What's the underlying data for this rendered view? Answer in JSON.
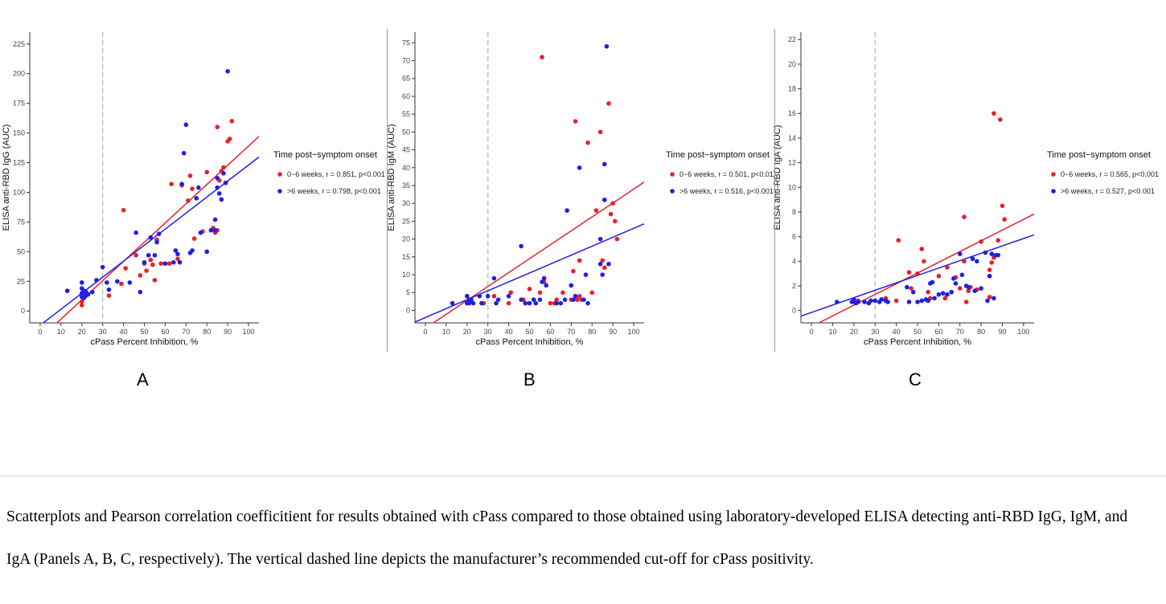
{
  "caption": "Scatterplots and Pearson correlation coefficitient for results obtained with cPass compared to those obtained using laboratory-developed ELISA detecting anti-RBD IgG, IgM, and IgA (Panels A, B, C, respectively).  The vertical dashed line depicts the manufacturer’s recommended cut-off for cPass positivity.",
  "colors": {
    "early": "#e8202a",
    "late": "#1f1fe6",
    "cutoff": "#bbbbbb",
    "axis": "#333333"
  },
  "chart_data": [
    {
      "type": "scatter",
      "panel_label": "A",
      "xlabel": "cPass Percent Inhibition, %",
      "ylabel": "ELISA anti-RBD IgG (AUC)",
      "xlim": [
        -5,
        105
      ],
      "ylim": [
        -10,
        235
      ],
      "xticks": [
        0,
        10,
        20,
        30,
        40,
        50,
        60,
        70,
        80,
        90,
        100
      ],
      "yticks": [
        0,
        25,
        50,
        75,
        100,
        125,
        150,
        175,
        200,
        225
      ],
      "cutoff_x": 30,
      "legend_title": "Time post−symptom onset",
      "series": [
        {
          "name": "0−6 weeks, r = 0.851, p<0.001",
          "color": "#e8202a",
          "fit": {
            "slope": 1.62,
            "intercept": -23
          },
          "x": [
            20,
            20,
            20,
            21,
            22,
            33,
            39,
            40,
            41,
            46,
            48,
            50,
            51,
            53,
            54,
            55,
            56,
            58,
            62,
            63,
            66,
            68,
            71,
            72,
            73,
            74,
            78,
            80,
            83,
            84,
            85,
            85,
            86,
            87,
            88,
            89,
            90,
            91,
            92
          ],
          "y": [
            5,
            8,
            12,
            15,
            14,
            13,
            23,
            85,
            36,
            47,
            30,
            40,
            34,
            43,
            39,
            26,
            60,
            40,
            40,
            107,
            44,
            106,
            93,
            114,
            103,
            61,
            67,
            117,
            70,
            66,
            155,
            68,
            110,
            118,
            121,
            108,
            143,
            145,
            160
          ]
        },
        {
          "name": ">6 weeks, r = 0.798, p<0.001",
          "color": "#1f1fe6",
          "fit": {
            "slope": 1.35,
            "intercept": -12
          },
          "x": [
            13,
            20,
            20,
            20,
            20,
            21,
            21,
            22,
            22,
            23,
            25,
            27,
            30,
            32,
            33,
            37,
            43,
            46,
            48,
            50,
            52,
            53,
            55,
            56,
            57,
            60,
            64,
            65,
            66,
            67,
            68,
            69,
            70,
            72,
            73,
            75,
            76,
            77,
            80,
            82,
            84,
            84,
            85,
            85,
            86,
            87,
            88,
            89,
            90
          ],
          "y": [
            17,
            12,
            15,
            19,
            24,
            11,
            17,
            13,
            16,
            14,
            16,
            26,
            37,
            24,
            18,
            25,
            24,
            66,
            16,
            41,
            47,
            62,
            47,
            58,
            65,
            40,
            41,
            51,
            48,
            41,
            107,
            133,
            157,
            49,
            51,
            95,
            104,
            66,
            50,
            68,
            77,
            68,
            104,
            112,
            99,
            94,
            116,
            108,
            202
          ]
        }
      ]
    },
    {
      "type": "scatter",
      "panel_label": "B",
      "xlabel": "cPass Percent Inhibition, %",
      "ylabel": "ELISA anti-RBD IgM (AUC)",
      "xlim": [
        -5,
        105
      ],
      "ylim": [
        -3.5,
        78
      ],
      "xticks": [
        0,
        10,
        20,
        30,
        40,
        50,
        60,
        70,
        80,
        90,
        100
      ],
      "yticks": [
        0,
        5,
        10,
        15,
        20,
        25,
        30,
        35,
        40,
        45,
        50,
        55,
        60,
        65,
        70,
        75
      ],
      "cutoff_x": 30,
      "legend_title": "Time post−symptom onset",
      "series": [
        {
          "name": "0−6 weeks, r = 0.501, p<0.01",
          "color": "#e8202a",
          "fit": {
            "slope": 0.39,
            "intercept": -5
          },
          "x": [
            20,
            22,
            28,
            33,
            40,
            41,
            47,
            50,
            52,
            55,
            56,
            57,
            60,
            62,
            63,
            66,
            70,
            71,
            72,
            73,
            74,
            74,
            75,
            78,
            80,
            82,
            84,
            85,
            86,
            88,
            89,
            90,
            91,
            92
          ],
          "y": [
            4,
            3,
            2,
            4,
            2,
            5,
            3,
            6,
            3,
            5,
            71,
            8,
            2,
            2,
            3,
            5,
            3,
            11,
            53,
            3,
            14,
            4,
            3,
            47,
            5,
            28,
            50,
            14,
            12,
            58,
            27,
            30,
            25,
            20
          ]
        },
        {
          "name": ">6 weeks, r = 0.516, p<0.001",
          "color": "#1f1fe6",
          "fit": {
            "slope": 0.25,
            "intercept": -2
          },
          "x": [
            13,
            20,
            20,
            21,
            21,
            22,
            23,
            26,
            27,
            30,
            33,
            34,
            35,
            40,
            46,
            46,
            48,
            50,
            52,
            53,
            55,
            56,
            57,
            58,
            63,
            65,
            67,
            68,
            70,
            71,
            72,
            74,
            76,
            77,
            78,
            84,
            84,
            85,
            86,
            86,
            87,
            88
          ],
          "y": [
            2,
            2,
            4,
            3,
            2,
            3,
            2,
            4,
            2,
            4,
            9,
            2,
            3,
            4,
            18,
            3,
            2,
            2,
            3,
            2,
            3,
            8,
            9,
            7,
            2,
            2,
            3,
            28,
            7,
            3,
            4,
            40,
            3,
            10,
            2,
            20,
            13,
            10,
            41,
            31,
            74,
            13
          ]
        }
      ]
    },
    {
      "type": "scatter",
      "panel_label": "C",
      "xlabel": "cPass Percent Inhibition, %",
      "ylabel": "ELISA anti-RBD IgA (AUC)",
      "xlim": [
        -5,
        105
      ],
      "ylim": [
        -1,
        22.6
      ],
      "xticks": [
        0,
        10,
        20,
        30,
        40,
        50,
        60,
        70,
        80,
        90,
        100
      ],
      "yticks": [
        0,
        2,
        4,
        6,
        8,
        10,
        12,
        14,
        16,
        18,
        20,
        22
      ],
      "cutoff_x": 30,
      "legend_title": "Time post−symptom onset",
      "series": [
        {
          "name": "0−6 weeks, r = 0.565, p<0.001",
          "color": "#e8202a",
          "fit": {
            "slope": 0.087,
            "intercept": -1.3
          },
          "x": [
            20,
            22,
            35,
            40,
            41,
            46,
            47,
            50,
            52,
            53,
            55,
            56,
            60,
            63,
            64,
            66,
            68,
            70,
            72,
            72,
            73,
            74,
            75,
            78,
            80,
            84,
            84,
            85,
            86,
            86,
            88,
            89,
            90,
            91
          ],
          "y": [
            0.7,
            0.8,
            1.0,
            0.8,
            5.7,
            3.1,
            1.8,
            3.0,
            5.0,
            4.0,
            1.5,
            1.0,
            2.8,
            1.0,
            3.5,
            1.5,
            2.7,
            1.8,
            7.6,
            4.0,
            0.7,
            1.6,
            1.9,
            1.7,
            5.6,
            1.1,
            3.3,
            3.9,
            4.3,
            16.0,
            5.7,
            15.5,
            8.5,
            7.4
          ]
        },
        {
          "name": ">6 weeks, r = 0.527, p<0.001",
          "color": "#1f1fe6",
          "fit": {
            "slope": 0.06,
            "intercept": -0.15
          },
          "x": [
            12,
            19,
            20,
            21,
            22,
            25,
            27,
            28,
            30,
            32,
            33,
            35,
            36,
            45,
            46,
            48,
            50,
            52,
            54,
            55,
            56,
            57,
            58,
            60,
            62,
            64,
            66,
            67,
            68,
            70,
            71,
            73,
            74,
            76,
            77,
            78,
            80,
            82,
            83,
            84,
            85,
            86,
            87,
            88
          ],
          "y": [
            0.7,
            0.7,
            0.9,
            0.6,
            0.7,
            0.7,
            0.6,
            0.8,
            0.8,
            0.7,
            0.9,
            0.8,
            0.7,
            1.9,
            0.7,
            1.5,
            0.7,
            0.8,
            0.9,
            0.8,
            2.2,
            2.3,
            1.0,
            1.3,
            1.4,
            1.3,
            1.5,
            2.6,
            2.2,
            4.6,
            2.9,
            2.0,
            1.9,
            4.2,
            1.6,
            4.0,
            1.8,
            4.7,
            0.8,
            2.8,
            4.6,
            1.0,
            4.5,
            4.5
          ]
        }
      ]
    }
  ]
}
